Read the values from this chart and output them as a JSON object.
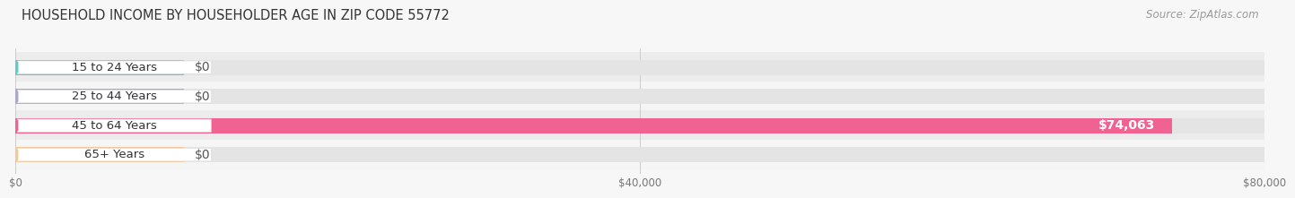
{
  "title": "HOUSEHOLD INCOME BY HOUSEHOLDER AGE IN ZIP CODE 55772",
  "source": "Source: ZipAtlas.com",
  "categories": [
    "15 to 24 Years",
    "25 to 44 Years",
    "45 to 64 Years",
    "65+ Years"
  ],
  "values": [
    0,
    0,
    74063,
    0
  ],
  "bar_colors": [
    "#62cac9",
    "#a8a8d8",
    "#f06292",
    "#f5c899"
  ],
  "value_labels": [
    "$0",
    "$0",
    "$74,063",
    "$0"
  ],
  "xlim": [
    0,
    80000
  ],
  "xtick_labels": [
    "$0",
    "$40,000",
    "$80,000"
  ],
  "xtick_vals": [
    0,
    40000,
    80000
  ],
  "background_color": "#f7f7f7",
  "bar_bg_color": "#e4e4e4",
  "title_fontsize": 10.5,
  "source_fontsize": 8.5,
  "bar_label_fontsize": 9.5,
  "value_label_fontsize": 10
}
